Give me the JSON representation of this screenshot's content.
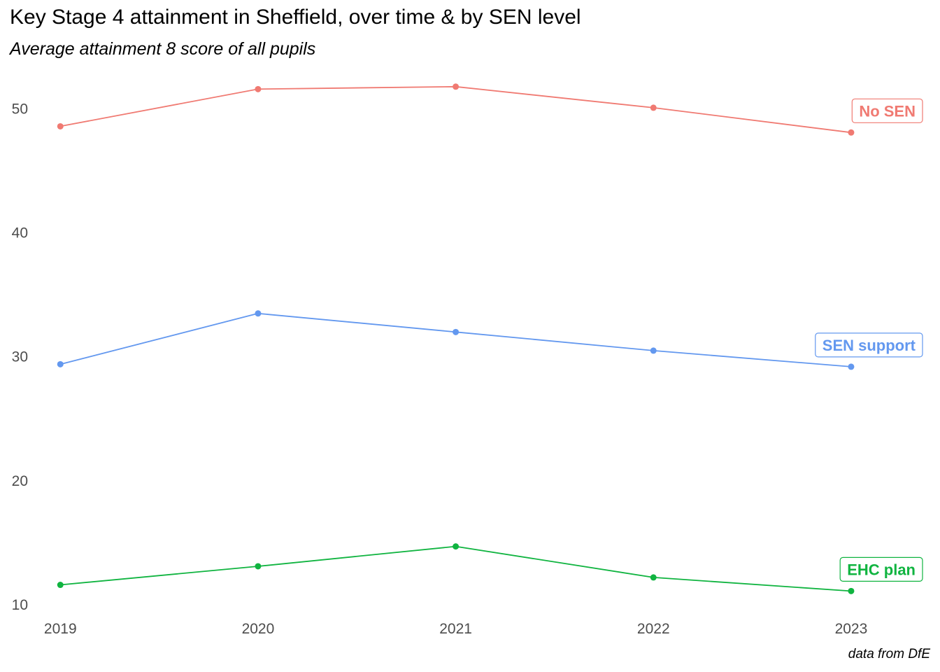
{
  "chart_data": {
    "type": "line",
    "title": "Key Stage 4 attainment in Sheffield, over time & by SEN level",
    "subtitle": "Average attainment 8 score of all pupils",
    "caption": "data from DfE",
    "xlabel": "",
    "ylabel": "",
    "x": [
      2019,
      2020,
      2021,
      2022,
      2023
    ],
    "x_tick_labels": [
      "2019",
      "2020",
      "2021",
      "2022",
      "2023"
    ],
    "y_ticks": [
      10,
      20,
      30,
      40,
      50
    ],
    "y_tick_labels": [
      "10",
      "20",
      "30",
      "40",
      "50"
    ],
    "ylim": [
      9.2,
      53.2
    ],
    "xlim": [
      2018.9,
      2023.4
    ],
    "grid": false,
    "legend": "direct labels at line ends",
    "series": [
      {
        "name": "No SEN",
        "values": [
          48.6,
          51.6,
          51.8,
          50.1,
          48.1
        ],
        "color": "#f07a72"
      },
      {
        "name": "SEN support",
        "values": [
          29.4,
          33.5,
          32.0,
          30.5,
          29.2
        ],
        "color": "#6398ef"
      },
      {
        "name": "EHC plan",
        "values": [
          11.6,
          13.1,
          14.7,
          12.2,
          11.1
        ],
        "color": "#10b440"
      }
    ]
  }
}
